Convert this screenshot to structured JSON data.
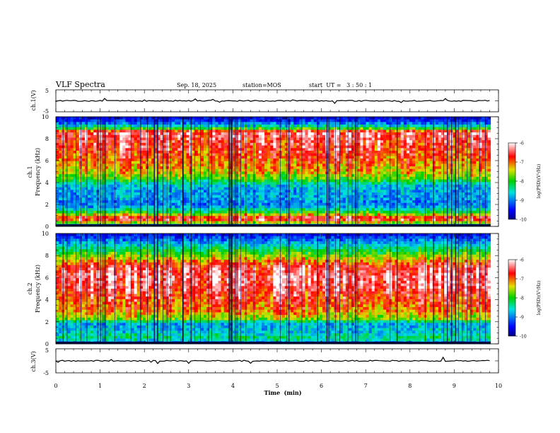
{
  "header": {
    "title": "VLF Spectra",
    "date": "Sep. 18, 2025",
    "station": "station=MOS",
    "start": "start  UT =   3 : 50 : 1"
  },
  "chart_data": [
    {
      "type": "line",
      "name": "ch1-voltage",
      "ylabel": "ch.1(V)",
      "ylim": [
        -5,
        5
      ],
      "yticks": [
        "5",
        "-5"
      ],
      "baseline": 0
    },
    {
      "type": "heatmap",
      "name": "ch1-spectrogram",
      "ylabel": "ch.1",
      "ylabel2": "Frequency (kHz)",
      "xlim": [
        0,
        10
      ],
      "ylim": [
        0,
        10
      ],
      "yticks": [
        "0",
        "2",
        "4",
        "6",
        "8",
        "10"
      ],
      "data_extent_min": 9.82,
      "colorbar": {
        "label": "log(PSD)(V²/Hz)",
        "range": [
          -10,
          -6
        ],
        "ticks": [
          "-6",
          "-7",
          "-8",
          "-9",
          "-10"
        ]
      },
      "intensity_profile": [
        [
          0.0,
          0.3
        ],
        [
          0.3,
          0.6
        ],
        [
          0.7,
          0.95
        ],
        [
          1.2,
          0.55
        ],
        [
          1.8,
          0.3
        ],
        [
          2.1,
          0.25
        ],
        [
          2.6,
          0.3
        ],
        [
          3.2,
          0.3
        ],
        [
          3.8,
          0.35
        ],
        [
          4.3,
          0.55
        ],
        [
          5.0,
          0.7
        ],
        [
          6.0,
          0.78
        ],
        [
          7.0,
          0.85
        ],
        [
          8.0,
          0.9
        ],
        [
          8.6,
          0.95
        ],
        [
          9.0,
          0.45
        ],
        [
          9.5,
          0.2
        ],
        [
          10.0,
          0.08
        ]
      ]
    },
    {
      "type": "heatmap",
      "name": "ch2-spectrogram",
      "ylabel": "ch.2",
      "ylabel2": "Frequency (kHz)",
      "xlim": [
        0,
        10
      ],
      "ylim": [
        0,
        10
      ],
      "yticks": [
        "0",
        "2",
        "4",
        "6",
        "8",
        "10"
      ],
      "data_extent_min": 9.82,
      "colorbar": {
        "label": "log(PSD)(V²/Hz)",
        "range": [
          -10,
          -6
        ],
        "ticks": [
          "-6",
          "-7",
          "-8",
          "-9",
          "-10"
        ]
      },
      "intensity_profile": [
        [
          0.0,
          0.2
        ],
        [
          0.5,
          0.45
        ],
        [
          1.0,
          0.35
        ],
        [
          1.9,
          0.3
        ],
        [
          2.2,
          0.6
        ],
        [
          3.0,
          0.75
        ],
        [
          4.0,
          0.82
        ],
        [
          5.0,
          0.9
        ],
        [
          6.0,
          0.95
        ],
        [
          7.0,
          0.88
        ],
        [
          8.0,
          0.6
        ],
        [
          9.0,
          0.35
        ],
        [
          10.0,
          0.1
        ]
      ]
    },
    {
      "type": "line",
      "name": "ch3-voltage",
      "ylabel": "ch.3(V)",
      "ylim": [
        -5,
        5
      ],
      "yticks": [
        "5",
        "-5"
      ],
      "baseline": 0
    }
  ],
  "xaxis": {
    "label": "Time  (min)",
    "xlim": [
      0,
      10
    ],
    "ticks": [
      "0",
      "1",
      "2",
      "3",
      "4",
      "5",
      "6",
      "7",
      "8",
      "9",
      "10"
    ]
  }
}
